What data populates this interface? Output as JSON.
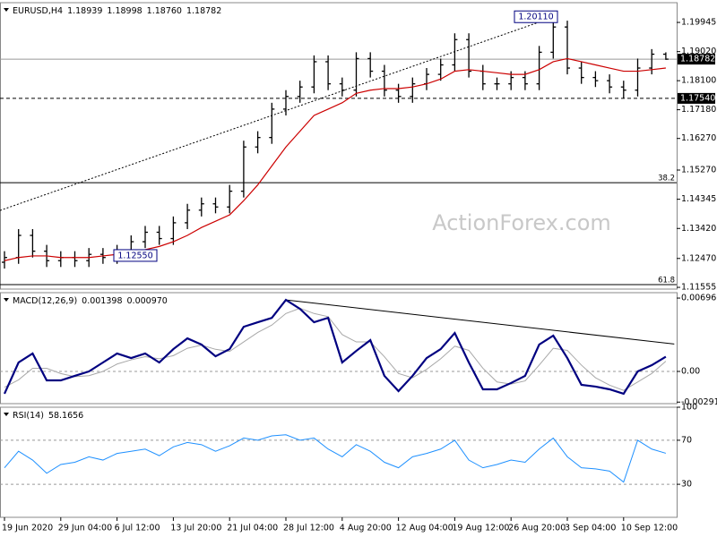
{
  "chart_data": [
    {
      "type": "ohlc",
      "title": "EURUSD,H4",
      "header_values": [
        1.18939,
        1.18998,
        {
          "value": 1.1876,
          "label": "1.18760"
        },
        1.18782
      ],
      "color": "#000000",
      "open": [
        1.1235,
        1.125,
        1.132,
        1.127,
        1.124,
        1.125,
        1.124,
        1.126,
        1.125,
        1.127,
        1.13,
        1.133,
        1.131,
        1.136,
        1.14,
        1.142,
        1.141,
        1.146,
        1.16,
        1.163,
        1.172,
        1.176,
        1.179,
        1.187,
        1.18,
        1.178,
        1.188,
        1.184,
        1.178,
        1.176,
        1.18,
        1.183,
        1.186,
        1.194,
        1.184,
        1.18,
        1.18,
        1.182,
        1.18,
        1.19,
        1.198,
        1.185,
        1.182,
        1.181,
        1.179,
        1.178,
        1.185,
        1.18939
      ],
      "high": [
        1.127,
        1.134,
        1.134,
        1.129,
        1.127,
        1.127,
        1.128,
        1.128,
        1.129,
        1.132,
        1.135,
        1.135,
        1.138,
        1.142,
        1.144,
        1.144,
        1.148,
        1.162,
        1.165,
        1.174,
        1.178,
        1.181,
        1.189,
        1.189,
        1.182,
        1.19,
        1.19,
        1.186,
        1.18,
        1.182,
        1.185,
        1.188,
        1.196,
        1.196,
        1.186,
        1.182,
        1.184,
        1.184,
        1.192,
        1.2011,
        1.2,
        1.187,
        1.184,
        1.183,
        1.181,
        1.188,
        1.191,
        1.18998
      ],
      "low": [
        1.1215,
        1.123,
        1.125,
        1.122,
        1.122,
        1.122,
        1.122,
        1.123,
        1.123,
        1.125,
        1.128,
        1.129,
        1.129,
        1.134,
        1.138,
        1.139,
        1.139,
        1.144,
        1.158,
        1.161,
        1.17,
        1.174,
        1.177,
        1.178,
        1.176,
        1.176,
        1.182,
        1.176,
        1.174,
        1.174,
        1.178,
        1.181,
        1.184,
        1.182,
        1.178,
        1.178,
        1.178,
        1.178,
        1.178,
        1.188,
        1.183,
        1.18,
        1.179,
        1.177,
        1.1754,
        1.176,
        1.183,
        1.1876
      ],
      "close": [
        1.125,
        1.132,
        1.127,
        1.124,
        1.125,
        1.124,
        1.126,
        1.125,
        1.127,
        1.13,
        1.133,
        1.131,
        1.136,
        1.14,
        1.142,
        1.141,
        1.146,
        1.16,
        1.163,
        1.172,
        1.176,
        1.179,
        1.187,
        1.18,
        1.178,
        1.188,
        1.184,
        1.178,
        1.176,
        1.18,
        1.183,
        1.186,
        1.194,
        1.184,
        1.18,
        1.18,
        1.182,
        1.18,
        1.19,
        1.198,
        1.185,
        1.182,
        1.181,
        1.179,
        1.178,
        1.185,
        1.18939,
        1.18782
      ],
      "ma": {
        "color": "#cc0000",
        "values": [
          1.124,
          1.125,
          1.1255,
          1.1255,
          1.125,
          1.125,
          1.125,
          1.1255,
          1.126,
          1.1265,
          1.1275,
          1.1285,
          1.13,
          1.132,
          1.1345,
          1.1365,
          1.1385,
          1.143,
          1.148,
          1.154,
          1.16,
          1.165,
          1.17,
          1.172,
          1.174,
          1.177,
          1.178,
          1.1785,
          1.1785,
          1.179,
          1.18,
          1.1815,
          1.184,
          1.1845,
          1.184,
          1.1835,
          1.183,
          1.183,
          1.1845,
          1.187,
          1.188,
          1.187,
          1.186,
          1.185,
          1.184,
          1.184,
          1.1845,
          1.185
        ]
      },
      "ylim": [
        1.115,
        1.2057
      ],
      "yticks": [
        1.19945,
        {
          "value": 1.1902,
          "label": "1.19020"
        },
        {
          "value": 1.181,
          "label": "1.18100"
        },
        {
          "value": 1.1718,
          "label": "1.17180"
        },
        {
          "value": 1.1627,
          "label": "1.16270"
        },
        {
          "value": 1.1527,
          "label": "1.15270"
        },
        1.14345,
        {
          "value": 1.1342,
          "label": "1.13420"
        },
        {
          "value": 1.1247,
          "label": "1.12470"
        },
        1.11555
      ],
      "price_labels": [
        1.18782,
        {
          "value": 1.1754,
          "label": "1.17540"
        }
      ],
      "fib_levels": [
        {
          "value": 1.1487,
          "label": "38.2"
        },
        {
          "value": 1.1164,
          "label": "61.8"
        }
      ],
      "trendline": {
        "x": [
          0,
          39
        ],
        "y": [
          1.1399,
          1.2011
        ]
      },
      "annotations": [
        {
          "value": 1.2011,
          "label": "1.20110"
        },
        {
          "value": 1.1255,
          "label": "1.12550"
        }
      ],
      "watermark": "ActionForex.com"
    },
    {
      "type": "line",
      "title": "MACD(12,26,9)",
      "header_values": [
        0.001398,
        {
          "value": 0.00097,
          "label": "0.000970"
        }
      ],
      "series": [
        {
          "color": "#000080",
          "values": [
            -0.00212,
            0.00085,
            0.0017,
            -0.00085,
            -0.00085,
            -0.00042,
            0.0,
            0.00085,
            0.0017,
            0.00127,
            0.0017,
            0.00085,
            0.00212,
            0.00314,
            0.00255,
            0.00144,
            0.00212,
            0.00424,
            0.00467,
            0.00509,
            0.00679,
            0.00594,
            0.00467,
            0.00509,
            0.00085,
            0.00195,
            0.00297,
            -0.00042,
            -0.00187,
            -0.00042,
            0.00127,
            0.00212,
            0.00365,
            0.00085,
            -0.0017,
            -0.0017,
            -0.0011,
            -0.00042,
            0.00255,
            0.0034,
            0.00127,
            -0.00127,
            -0.00144,
            -0.0017,
            -0.00212,
            0.0,
            0.00059,
            0.001398
          ]
        },
        {
          "color": "#a8a8a8",
          "values": [
            -0.0015,
            -0.0008,
            0.0003,
            0.0003,
            -0.0002,
            -0.0005,
            -0.0004,
            0.0,
            0.0007,
            0.0011,
            0.0014,
            0.0012,
            0.0015,
            0.0022,
            0.0025,
            0.0021,
            0.0019,
            0.0028,
            0.0037,
            0.0044,
            0.0055,
            0.006,
            0.0055,
            0.0052,
            0.0035,
            0.0028,
            0.0028,
            0.0014,
            -0.0002,
            -0.0006,
            0.0002,
            0.0012,
            0.0024,
            0.002,
            0.0003,
            -0.001,
            -0.0012,
            -0.0009,
            0.0006,
            0.0022,
            0.002,
            0.0006,
            -0.0006,
            -0.0013,
            -0.0018,
            -0.001,
            -0.0002,
            0.00097
          ]
        }
      ],
      "ylim": [
        -0.00306,
        0.00748
      ],
      "yticks": [
        0.006966,
        {
          "value": 0,
          "label": "0.00"
        },
        -0.002913
      ],
      "levels": [
        0
      ],
      "trendline": {
        "x": [
          20,
          47.6
        ],
        "y": [
          0.00679,
          0.0026
        ]
      }
    },
    {
      "type": "line",
      "title": "RSI(14)",
      "header_values": [
        58.1656
      ],
      "series": [
        {
          "color": "#1e90ff",
          "values": [
            45,
            60,
            52,
            40,
            48,
            50,
            55,
            52,
            58,
            60,
            62,
            56,
            64,
            68,
            66,
            60,
            65,
            72,
            70,
            74,
            75,
            70,
            72,
            62,
            55,
            66,
            60,
            50,
            45,
            55,
            58,
            62,
            70,
            52,
            45,
            48,
            52,
            50,
            62,
            72,
            55,
            45,
            44,
            42,
            32,
            70,
            62,
            58.1656
          ]
        }
      ],
      "ylim": [
        0,
        100
      ],
      "yticks": [
        100,
        70,
        30
      ],
      "levels": [
        70,
        30
      ],
      "categories": [
        "19 Jun 2020",
        null,
        null,
        null,
        "29 Jun 04:00",
        null,
        null,
        null,
        "6 Jul 12:00",
        null,
        null,
        null,
        "13 Jul 20:00",
        null,
        null,
        null,
        "21 Jul 04:00",
        null,
        null,
        null,
        "28 Jul 12:00",
        null,
        null,
        null,
        "4 Aug 20:00",
        null,
        null,
        null,
        "12 Aug 04:00",
        null,
        null,
        null,
        "19 Aug 12:00",
        null,
        null,
        null,
        "26 Aug 20:00",
        null,
        null,
        null,
        "3 Sep 04:00",
        null,
        null,
        null,
        "10 Sep 12:00",
        null,
        null,
        null
      ]
    }
  ]
}
